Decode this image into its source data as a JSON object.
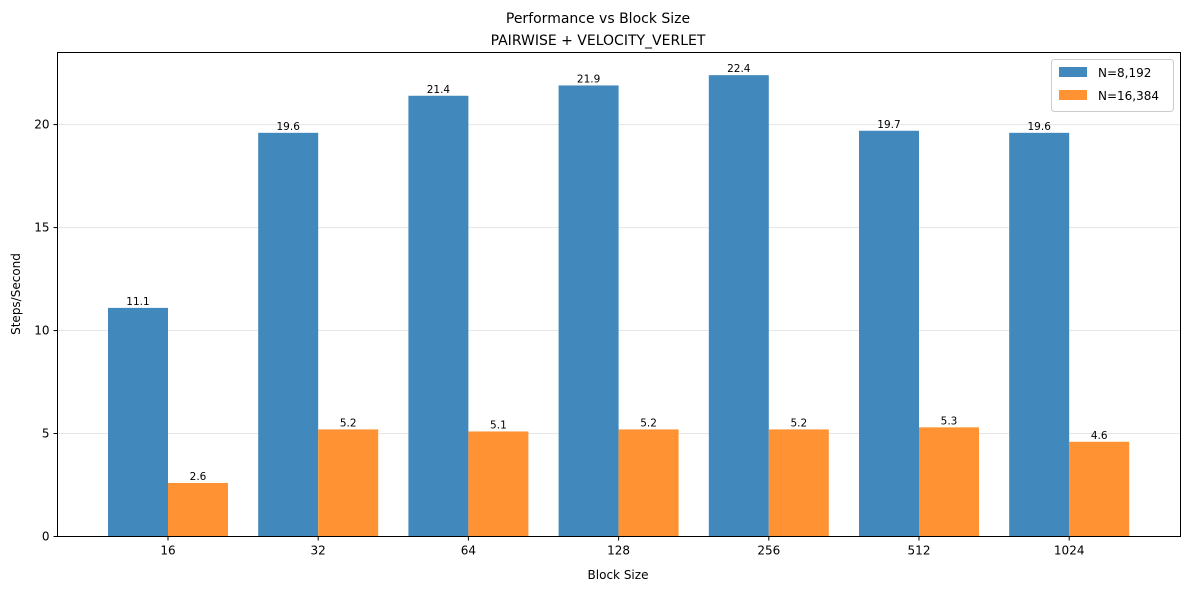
{
  "chart_data": {
    "type": "bar",
    "title": "Performance vs Block Size",
    "subtitle": "PAIRWISE + VELOCITY_VERLET",
    "xlabel": "Block Size",
    "ylabel": "Steps/Second",
    "categories": [
      "16",
      "32",
      "64",
      "128",
      "256",
      "512",
      "1024"
    ],
    "series": [
      {
        "name": "N=8,192",
        "color": "#4189bd",
        "values": [
          11.1,
          19.6,
          21.4,
          21.9,
          22.4,
          19.7,
          19.6
        ],
        "labels": [
          "11.1",
          "19.6",
          "21.4",
          "21.9",
          "22.4",
          "19.7",
          "19.6"
        ]
      },
      {
        "name": "N=16,384",
        "color": "#ff9233",
        "values": [
          2.6,
          5.2,
          5.1,
          5.2,
          5.2,
          5.3,
          4.6
        ],
        "labels": [
          "2.6",
          "5.2",
          "5.1",
          "5.2",
          "5.2",
          "5.3",
          "4.6"
        ]
      }
    ],
    "yticks": [
      "0",
      "5",
      "10",
      "15",
      "20"
    ],
    "ylim": [
      0,
      23.5
    ],
    "grid": "y",
    "legend": "top-right"
  }
}
